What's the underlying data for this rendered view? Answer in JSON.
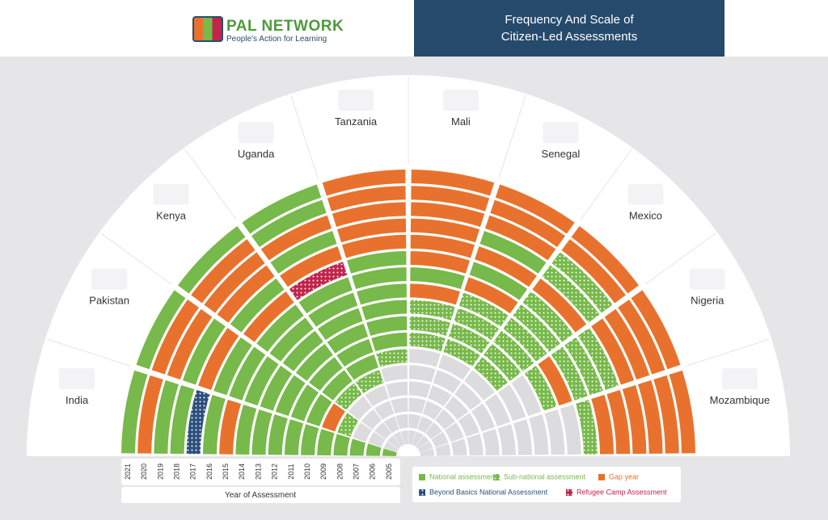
{
  "header": {
    "logo": "PAL NETWORK",
    "tagline": "People's Action for Learning"
  },
  "chart_data": {
    "type": "radial-grid",
    "title": "Frequency And Scale of Citizen-Led Assessments",
    "x_label": "Year of Assessment",
    "categories": [
      2005,
      2006,
      2007,
      2008,
      2009,
      2010,
      2011,
      2012,
      2013,
      2014,
      2015,
      2016,
      2017,
      2018,
      2019,
      2020,
      2021
    ],
    "empty_color": "#dcdcdf",
    "legend": [
      {
        "name": "National assessment",
        "color": "#77b94a",
        "pattern": "solid"
      },
      {
        "name": "Sub-national assessment",
        "color": "#77b94a",
        "pattern": "dots"
      },
      {
        "name": "Gap year",
        "color": "#e8722d",
        "pattern": "solid"
      },
      {
        "name": "Beyond Basics National Assessment",
        "color": "#2c4f7c",
        "pattern": "dots"
      },
      {
        "name": "Refugee Camp Assessment",
        "color": "#c0254a",
        "pattern": "dots"
      }
    ],
    "series": [
      {
        "name": "India",
        "values": [
          "National assessment",
          "National assessment",
          "National assessment",
          "National assessment",
          "National assessment",
          "National assessment",
          "National assessment",
          "National assessment",
          "National assessment",
          "National assessment",
          "Gap year",
          "National assessment",
          "Beyond Basics National Assessment",
          "National assessment",
          "National assessment",
          "Gap year",
          "National assessment"
        ]
      },
      {
        "name": "Pakistan",
        "values": [
          null,
          null,
          null,
          "Sub-national assessment",
          "Gap year",
          "National assessment",
          "National assessment",
          "National assessment",
          "National assessment",
          "National assessment",
          "National assessment",
          "National assessment",
          "Gap year",
          "National assessment",
          "Gap year",
          "Gap year",
          "National assessment"
        ]
      },
      {
        "name": "Kenya",
        "values": [
          null,
          null,
          null,
          null,
          "Sub-national assessment",
          "National assessment",
          "National assessment",
          "National assessment",
          "National assessment",
          "National assessment",
          "National assessment",
          "Gap year",
          "National assessment",
          "Gap year",
          "Gap year",
          "Gap year",
          "National assessment"
        ]
      },
      {
        "name": "Uganda",
        "values": [
          null,
          null,
          null,
          null,
          "Sub-national assessment",
          "National assessment",
          "National assessment",
          "National assessment",
          "National assessment",
          "National assessment",
          "National assessment",
          "Refugee Camp Assessment",
          "Gap year",
          "National assessment",
          "Gap year",
          "National assessment",
          "National assessment"
        ]
      },
      {
        "name": "Tanzania",
        "values": [
          null,
          null,
          null,
          null,
          null,
          "Sub-national assessment",
          "National assessment",
          "National assessment",
          "National assessment",
          "National assessment",
          "National assessment",
          "National assessment",
          "Gap year",
          "Gap year",
          "Gap year",
          "Gap year",
          "Gap year"
        ]
      },
      {
        "name": "Mali",
        "values": [
          null,
          null,
          null,
          null,
          null,
          null,
          "Sub-national assessment",
          "Sub-national assessment",
          "Sub-national assessment",
          "Gap year",
          "National assessment",
          "Gap year",
          "Gap year",
          "Gap year",
          "Gap year",
          "Gap year",
          "Gap year"
        ]
      },
      {
        "name": "Senegal",
        "values": [
          null,
          null,
          null,
          null,
          null,
          null,
          "Sub-national assessment",
          "Sub-national assessment",
          "Sub-national assessment",
          "Sub-national assessment",
          "Gap year",
          "National assessment",
          "Gap year",
          "National assessment",
          "Gap year",
          "Gap year",
          "Gap year"
        ]
      },
      {
        "name": "Mexico",
        "values": [
          null,
          null,
          null,
          null,
          null,
          null,
          "Sub-national assessment",
          "Sub-national assessment",
          "Sub-national assessment",
          "Sub-national assessment",
          "Sub-national assessment",
          "Sub-national assessment",
          "Gap year",
          "Sub-national assessment",
          "Sub-national assessment",
          "Gap year",
          "Gap year"
        ]
      },
      {
        "name": "Nigeria",
        "values": [
          null,
          null,
          null,
          null,
          null,
          null,
          null,
          null,
          "Sub-national assessment",
          "Gap year",
          "Sub-national assessment",
          "Sub-national assessment",
          "Sub-national assessment",
          "Gap year",
          "Gap year",
          "Gap year",
          "Gap year"
        ]
      },
      {
        "name": "Mozambique",
        "values": [
          null,
          null,
          null,
          null,
          null,
          null,
          null,
          null,
          null,
          null,
          "Sub-national assessment",
          "Gap year",
          "Gap year",
          "Gap year",
          "Gap year",
          "Gap year",
          "Gap year"
        ]
      }
    ]
  }
}
